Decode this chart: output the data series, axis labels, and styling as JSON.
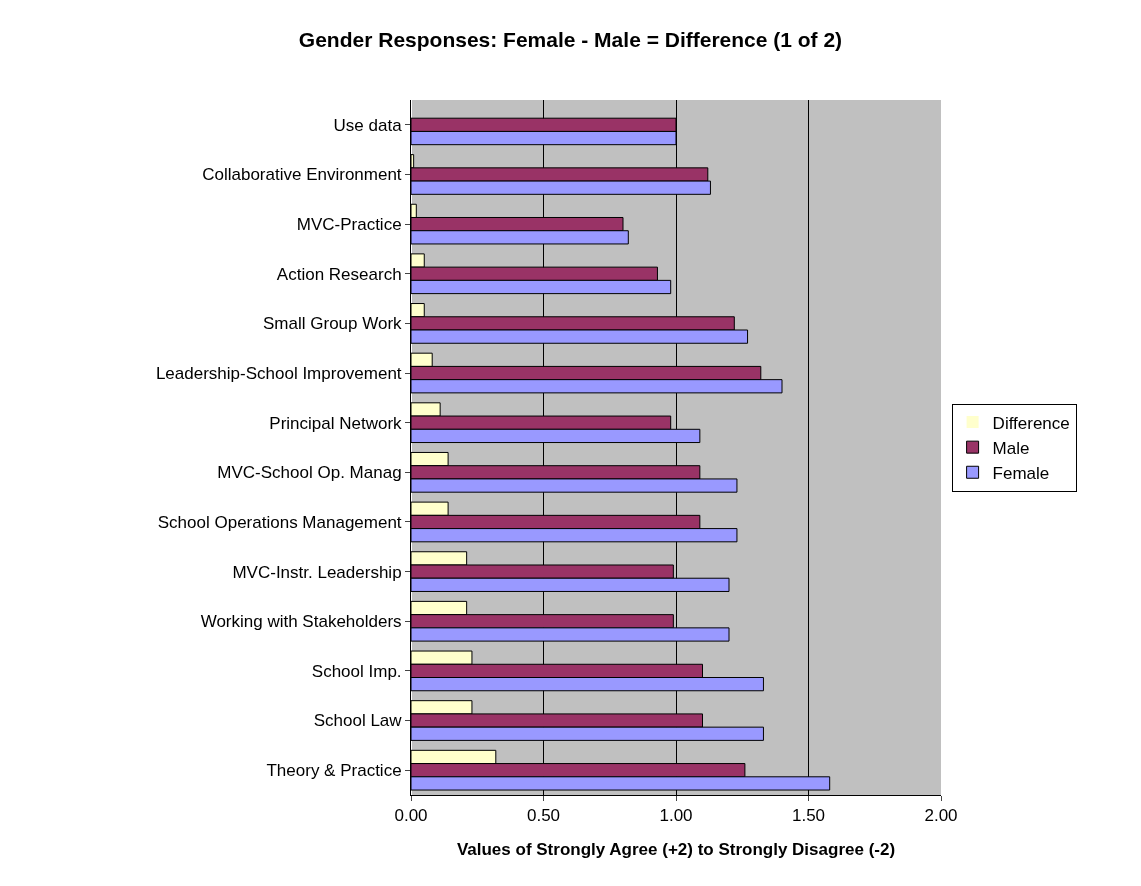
{
  "chart_data": {
    "type": "bar",
    "orientation": "horizontal",
    "title": "Gender Responses: Female - Male = Difference (1 of 2)",
    "xlabel": "Values of Strongly Agree (+2) to Strongly Disagree (-2)",
    "categories": [
      "Use data",
      "Collaborative Environment",
      "MVC-Practice",
      "Action Research",
      "Small Group Work",
      "Leadership-School Improvement",
      "Principal Network",
      "MVC-School Op. Manag",
      "School Operations Management",
      "MVC-Instr. Leadership",
      "Working with Stakeholders",
      "School Imp.",
      "School Law",
      "Theory & Practice"
    ],
    "series": [
      {
        "name": "Difference",
        "color": "#ffffcc",
        "values": [
          0,
          0.01,
          0.02,
          0.05,
          0.05,
          0.08,
          0.11,
          0.14,
          0.14,
          0.21,
          0.21,
          0.23,
          0.23,
          0.32
        ]
      },
      {
        "name": "Male",
        "color": "#993366",
        "values": [
          1.0,
          1.12,
          0.8,
          0.93,
          1.22,
          1.32,
          0.98,
          1.09,
          1.09,
          0.99,
          0.99,
          1.1,
          1.1,
          1.26
        ]
      },
      {
        "name": "Female",
        "color": "#9999ff",
        "values": [
          1.0,
          1.13,
          0.82,
          0.98,
          1.27,
          1.4,
          1.09,
          1.23,
          1.23,
          1.2,
          1.2,
          1.33,
          1.33,
          1.58
        ]
      }
    ],
    "xlim": [
      0,
      2
    ],
    "xticks": [
      {
        "value": 0,
        "label": "0.00"
      },
      {
        "value": 0.5,
        "label": "0.50"
      },
      {
        "value": 1,
        "label": "1.00"
      },
      {
        "value": 1.5,
        "label": "1.50"
      },
      {
        "value": 2,
        "label": "2.00"
      }
    ],
    "grid": "x",
    "legend": "right"
  }
}
